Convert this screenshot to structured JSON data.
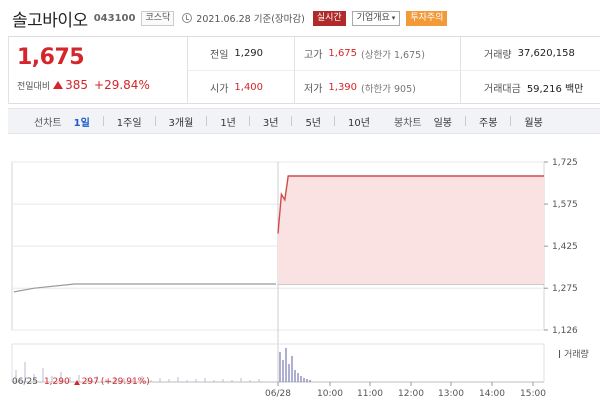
{
  "header": {
    "stock_name": "솔고바이오",
    "stock_code": "043100",
    "market": "코스닥",
    "date": "2021.06.28 기준(장마감)",
    "live_badge": "실시간",
    "company_button": "기업개요",
    "warning_badge": "투자주의"
  },
  "price": {
    "current": "1,675",
    "change_label": "전일대비",
    "change_amount": "385",
    "change_percent": "+29.84%"
  },
  "stats": {
    "prev_close_label": "전일",
    "prev_close": "1,290",
    "high_label": "고가",
    "high": "1,675",
    "high_sub": "(상한가 1,675)",
    "volume_label": "거래량",
    "volume": "37,620,158",
    "open_label": "시가",
    "open": "1,400",
    "low_label": "저가",
    "low": "1,390",
    "low_sub": "(하한가 905)",
    "value_label": "거래대금",
    "value": "59,216 백만"
  },
  "toolbar": {
    "line_label": "선차트",
    "periods": [
      "1일",
      "1주일",
      "3개월",
      "1년",
      "3년",
      "5년",
      "10년"
    ],
    "active_period": "1일",
    "candle_label": "봉차트",
    "candles": [
      "일봉",
      "주봉",
      "월봉"
    ]
  },
  "chart_data": {
    "type": "line",
    "series": [
      {
        "x": [
          "06/25 09:00",
          "06/25 09:30",
          "06/25 10:30",
          "06/25 15:30",
          "06/28 09:00",
          "06/28 09:05",
          "06/28 09:10",
          "06/28 09:15",
          "06/28 15:30"
        ],
        "y": [
          1262,
          1275,
          1290,
          1290,
          1470,
          1610,
          1590,
          1675,
          1675
        ]
      }
    ],
    "y_ticks": [
      "1,725",
      "1,575",
      "1,425",
      "1,275",
      "1,126"
    ],
    "ylim": [
      1126,
      1725
    ],
    "x_ticks": [
      "06/28",
      "10:00",
      "11:00",
      "12:00",
      "13:00",
      "14:00",
      "15:00"
    ],
    "start_label": "06/25",
    "prev_day_price": "1,290",
    "prev_day_change": "297",
    "prev_day_pct": "(+29.91%)",
    "volume_label": "거래량",
    "colors": {
      "line": "#d24a4a",
      "fill": "#fbe2e2",
      "prev": "#9a9a9a",
      "grid": "#e8e8e8"
    }
  }
}
